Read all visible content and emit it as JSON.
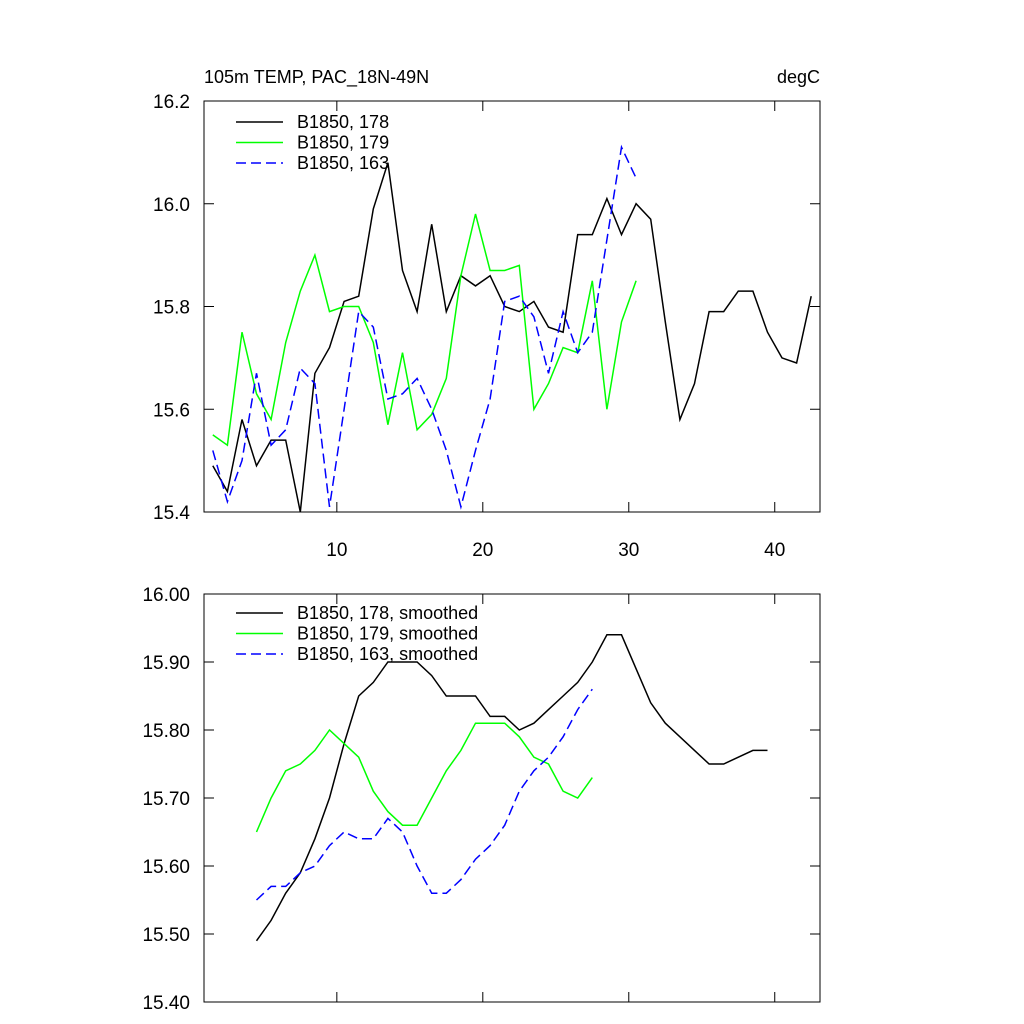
{
  "chart_data": [
    {
      "type": "line",
      "title": "105m TEMP, PAC_18N-49N",
      "units": "degC",
      "xlim": [
        0.9,
        43.1
      ],
      "xticks": [
        10,
        20,
        30,
        40
      ],
      "show_xtick_labels": true,
      "ylim": [
        15.4,
        16.2
      ],
      "yticks": [
        15.4,
        15.6,
        15.8,
        {
          "value": 16,
          "label": "16.0"
        },
        16.2
      ],
      "series": [
        {
          "name": "B1850, 178",
          "color": "#000000",
          "dash": false,
          "x": [
            1.5,
            2.5,
            3.5,
            4.5,
            5.5,
            6.5,
            7.5,
            8.5,
            9.5,
            10.5,
            11.5,
            12.5,
            13.5,
            14.5,
            15.5,
            16.5,
            17.5,
            18.5,
            19.5,
            20.5,
            21.5,
            22.5,
            23.5,
            24.5,
            25.5,
            26.5,
            27.5,
            28.5,
            29.5,
            30.5,
            31.5,
            32.5,
            33.5,
            34.5,
            35.5,
            36.5,
            37.5,
            38.5,
            39.5,
            40.5,
            41.5,
            42.5
          ],
          "values": [
            15.49,
            15.44,
            15.58,
            15.49,
            15.54,
            15.54,
            15.4,
            15.67,
            15.72,
            15.81,
            15.82,
            15.99,
            16.08,
            15.87,
            15.79,
            15.96,
            15.79,
            15.86,
            15.84,
            15.86,
            15.8,
            15.79,
            15.81,
            15.76,
            15.75,
            15.94,
            15.94,
            16.01,
            15.94,
            16.0,
            15.97,
            15.77,
            15.58,
            15.65,
            15.79,
            15.79,
            15.83,
            15.83,
            15.75,
            15.7,
            15.69,
            15.82
          ]
        },
        {
          "name": "B1850, 179",
          "color": "#00ff00",
          "dash": false,
          "x": [
            1.5,
            2.5,
            3.5,
            4.5,
            5.5,
            6.5,
            7.5,
            8.5,
            9.5,
            10.5,
            11.5,
            12.5,
            13.5,
            14.5,
            15.5,
            16.5,
            17.5,
            18.5,
            19.5,
            20.5,
            21.5,
            22.5,
            23.5,
            24.5,
            25.5,
            26.5,
            27.5,
            28.5,
            29.5,
            30.5
          ],
          "values": [
            15.55,
            15.53,
            15.75,
            15.63,
            15.58,
            15.73,
            15.83,
            15.9,
            15.79,
            15.8,
            15.8,
            15.73,
            15.57,
            15.71,
            15.56,
            15.59,
            15.66,
            15.86,
            15.98,
            15.87,
            15.87,
            15.88,
            15.6,
            15.65,
            15.72,
            15.71,
            15.85,
            15.6,
            15.77,
            15.85
          ]
        },
        {
          "name": "B1850, 163",
          "color": "#0000ff",
          "dash": true,
          "x": [
            1.5,
            2.5,
            3.5,
            4.5,
            5.5,
            6.5,
            7.5,
            8.5,
            9.5,
            10.5,
            11.5,
            12.5,
            13.5,
            14.5,
            15.5,
            16.5,
            17.5,
            18.5,
            19.5,
            20.5,
            21.5,
            22.5,
            23.5,
            24.5,
            25.5,
            26.5,
            27.5,
            28.5,
            29.5,
            30.5
          ],
          "values": [
            15.52,
            15.42,
            15.5,
            15.67,
            15.53,
            15.56,
            15.68,
            15.65,
            15.41,
            15.6,
            15.79,
            15.76,
            15.62,
            15.63,
            15.66,
            15.6,
            15.52,
            15.41,
            15.52,
            15.62,
            15.81,
            15.82,
            15.78,
            15.67,
            15.79,
            15.71,
            15.75,
            15.93,
            16.11,
            16.05
          ]
        }
      ]
    },
    {
      "type": "line",
      "xlim": [
        0.9,
        43.1
      ],
      "xticks": [
        10,
        20,
        30,
        40
      ],
      "show_xtick_labels": false,
      "ylim": [
        15.4,
        16.0
      ],
      "yticks": [
        {
          "value": 15.4,
          "label": "15.40"
        },
        {
          "value": 15.5,
          "label": "15.50"
        },
        {
          "value": 15.6,
          "label": "15.60"
        },
        {
          "value": 15.7,
          "label": "15.70"
        },
        {
          "value": 15.8,
          "label": "15.80"
        },
        {
          "value": 15.9,
          "label": "15.90"
        },
        {
          "value": 16,
          "label": "16.00"
        }
      ],
      "series": [
        {
          "name": "B1850, 178, smoothed",
          "color": "#000000",
          "dash": false,
          "x": [
            4.5,
            5.5,
            6.5,
            7.5,
            8.5,
            9.5,
            10.5,
            11.5,
            12.5,
            13.5,
            14.5,
            15.5,
            16.5,
            17.5,
            18.5,
            19.5,
            20.5,
            21.5,
            22.5,
            23.5,
            24.5,
            25.5,
            26.5,
            27.5,
            28.5,
            29.5,
            30.5,
            31.5,
            32.5,
            33.5,
            34.5,
            35.5,
            36.5,
            37.5,
            38.5,
            39.5
          ],
          "values": [
            15.49,
            15.52,
            15.56,
            15.59,
            15.64,
            15.7,
            15.78,
            15.85,
            15.87,
            15.9,
            15.9,
            15.9,
            15.88,
            15.85,
            15.85,
            15.85,
            15.82,
            15.82,
            15.8,
            15.81,
            15.83,
            15.85,
            15.87,
            15.9,
            15.94,
            15.94,
            15.89,
            15.84,
            15.81,
            15.79,
            15.77,
            15.75,
            15.75,
            15.76,
            15.77,
            15.77
          ]
        },
        {
          "name": "B1850, 179, smoothed",
          "color": "#00ff00",
          "dash": false,
          "x": [
            4.5,
            5.5,
            6.5,
            7.5,
            8.5,
            9.5,
            10.5,
            11.5,
            12.5,
            13.5,
            14.5,
            15.5,
            16.5,
            17.5,
            18.5,
            19.5,
            20.5,
            21.5,
            22.5,
            23.5,
            24.5,
            25.5,
            26.5,
            27.5
          ],
          "values": [
            15.65,
            15.7,
            15.74,
            15.75,
            15.77,
            15.8,
            15.78,
            15.76,
            15.71,
            15.68,
            15.66,
            15.66,
            15.7,
            15.74,
            15.77,
            15.81,
            15.81,
            15.81,
            15.79,
            15.76,
            15.75,
            15.71,
            15.7,
            15.73
          ]
        },
        {
          "name": "B1850, 163, smoothed",
          "color": "#0000ff",
          "dash": true,
          "x": [
            4.5,
            5.5,
            6.5,
            7.5,
            8.5,
            9.5,
            10.5,
            11.5,
            12.5,
            13.5,
            14.5,
            15.5,
            16.5,
            17.5,
            18.5,
            19.5,
            20.5,
            21.5,
            22.5,
            23.5,
            24.5,
            25.5,
            26.5,
            27.5
          ],
          "values": [
            15.55,
            15.57,
            15.57,
            15.59,
            15.6,
            15.63,
            15.65,
            15.64,
            15.64,
            15.67,
            15.65,
            15.6,
            15.56,
            15.56,
            15.58,
            15.61,
            15.63,
            15.66,
            15.71,
            15.74,
            15.76,
            15.79,
            15.83,
            15.86
          ]
        }
      ]
    }
  ]
}
